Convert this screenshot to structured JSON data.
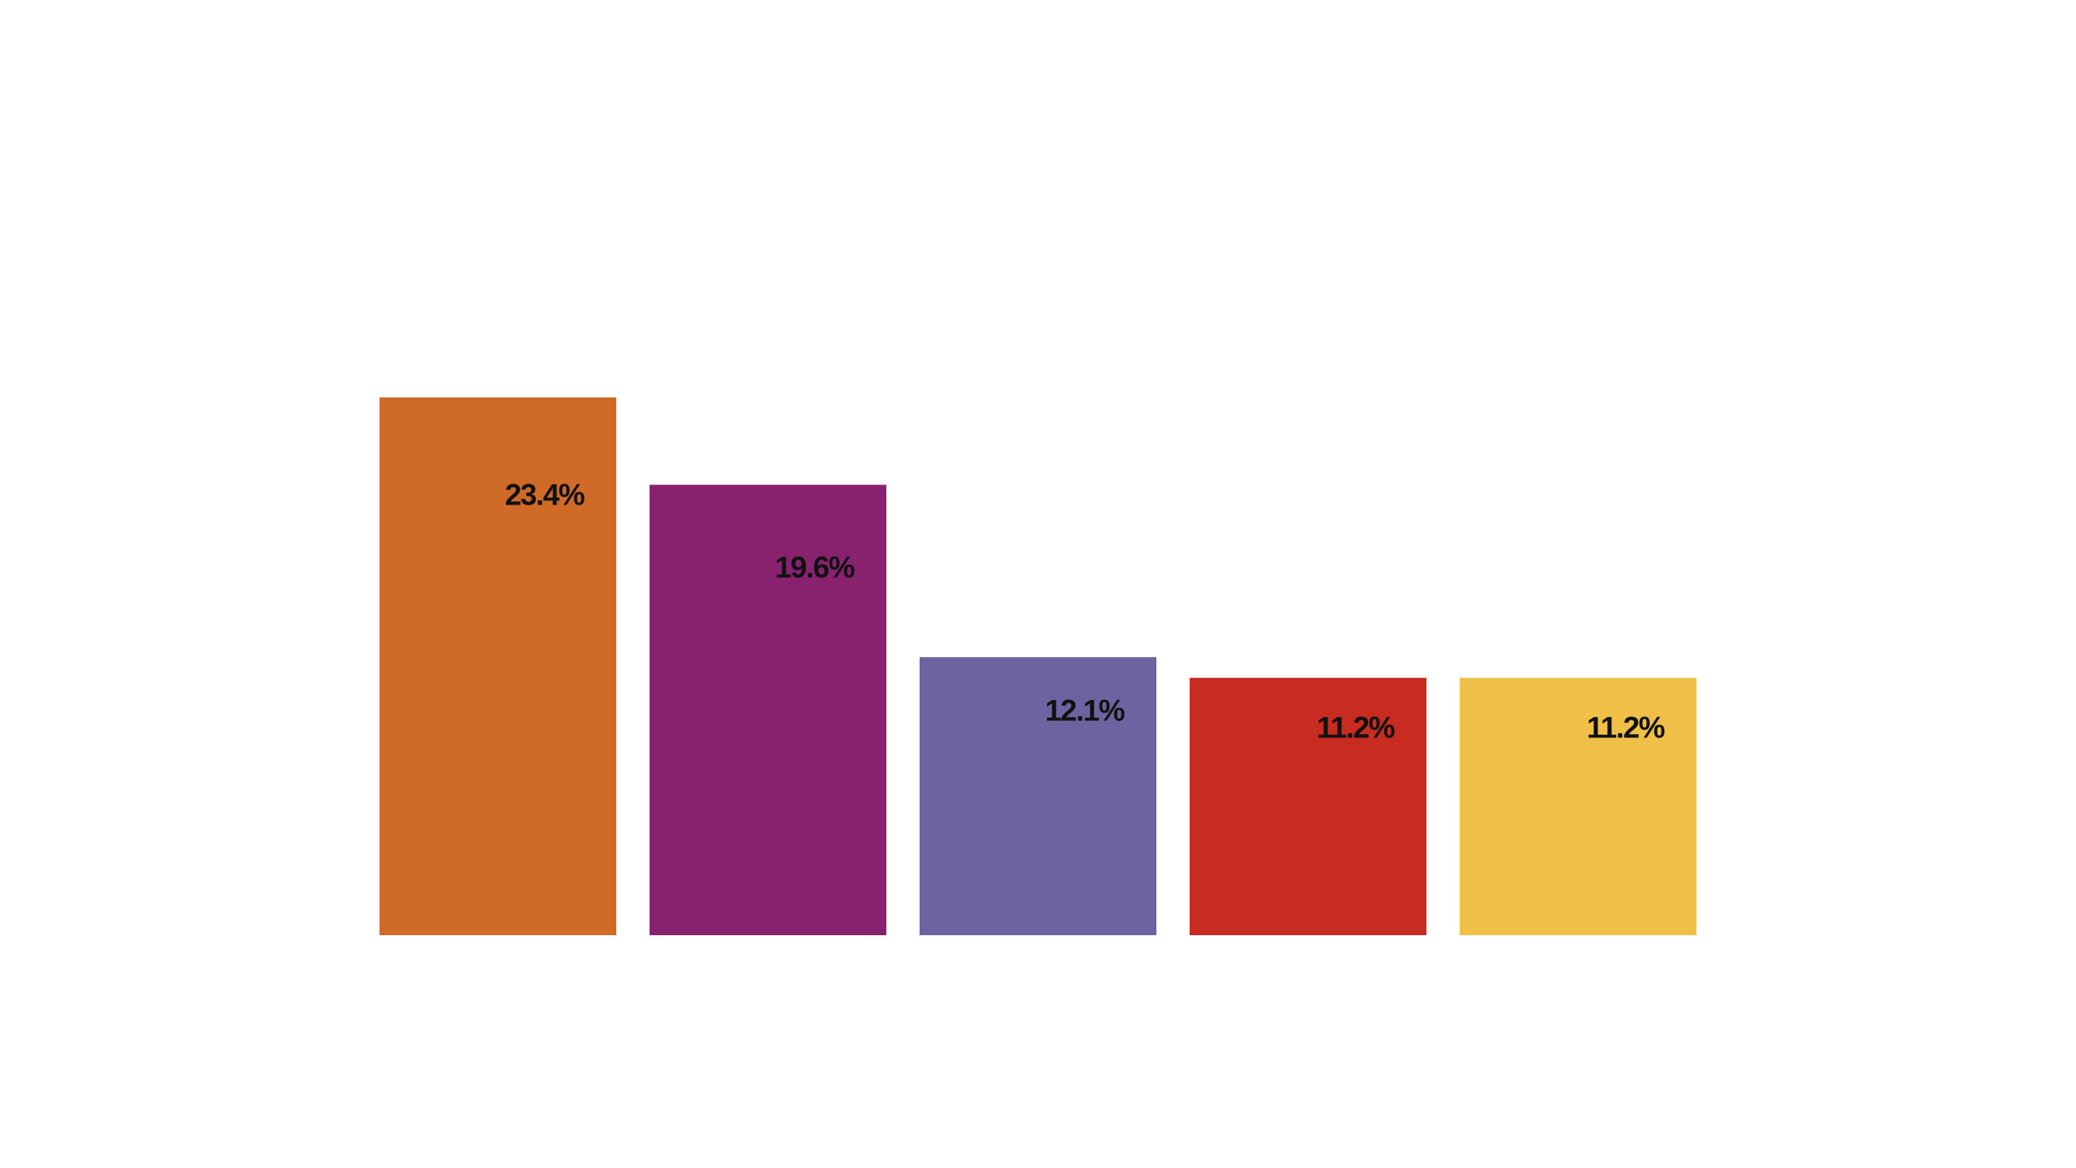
{
  "chart_data": {
    "type": "bar",
    "values": [
      23.4,
      19.6,
      12.1,
      11.2,
      11.2
    ],
    "labels": [
      "23.4%",
      "19.6%",
      "12.1%",
      "11.2%",
      "11.2%"
    ],
    "colors": [
      "#CF6B27",
      "#88226F",
      "#6E63A1",
      "#C82B1F",
      "#F0BF47"
    ],
    "ylim": [
      0,
      23.4
    ],
    "grid": false,
    "legend": "none"
  }
}
